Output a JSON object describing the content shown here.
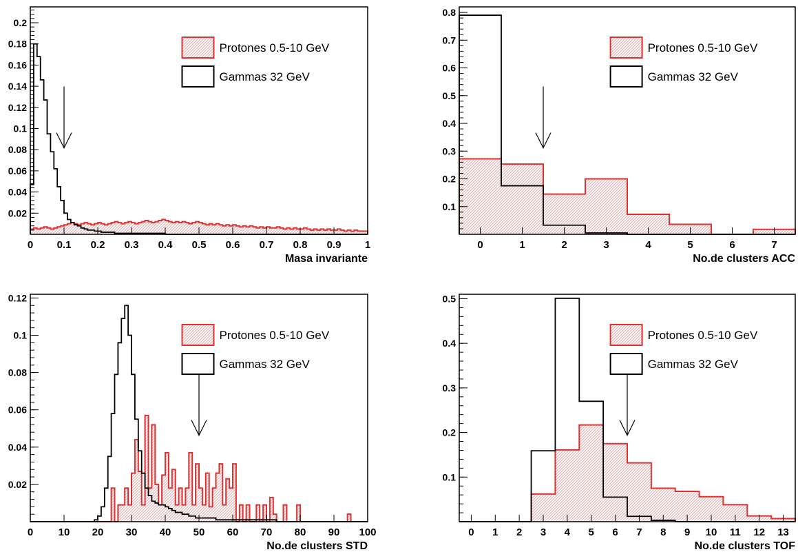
{
  "colors": {
    "protons": "#e03030",
    "gammas": "#000000",
    "hatch": "#e8a0a0",
    "axis": "#000000"
  },
  "chart_data": [
    {
      "id": "mass",
      "type": "histogram",
      "xlabel": "Masa invariante",
      "xlim": [
        0,
        1
      ],
      "ylim": [
        0,
        0.215
      ],
      "xticks": [
        "0",
        "0.1",
        "0.2",
        "0.3",
        "0.4",
        "0.5",
        "0.6",
        "0.7",
        "0.8",
        "0.9",
        "1"
      ],
      "xtick_values": [
        0,
        0.1,
        0.2,
        0.3,
        0.4,
        0.5,
        0.6,
        0.7,
        0.8,
        0.9,
        1
      ],
      "yticks": [
        "0.02",
        "0.04",
        "0.06",
        "0.08",
        "0.1",
        "0.12",
        "0.14",
        "0.16",
        "0.18",
        "0.2"
      ],
      "ytick_values": [
        0.02,
        0.04,
        0.06,
        0.08,
        0.1,
        0.12,
        0.14,
        0.16,
        0.18,
        0.2
      ],
      "legend": {
        "protons": "Protones 0.5-10 GeV",
        "gammas": "Gammas 32 GeV",
        "placement": "top-right"
      },
      "arrow_x": 0.1,
      "series": [
        {
          "name": "Protones 0.5-10 GeV",
          "bin_start": 0,
          "bin_width": 0.01,
          "values": [
            0.005,
            0.006,
            0.005,
            0.006,
            0.007,
            0.006,
            0.005,
            0.006,
            0.007,
            0.008,
            0.009,
            0.01,
            0.011,
            0.01,
            0.009,
            0.01,
            0.011,
            0.01,
            0.009,
            0.01,
            0.011,
            0.01,
            0.009,
            0.01,
            0.011,
            0.012,
            0.011,
            0.01,
            0.011,
            0.012,
            0.011,
            0.01,
            0.011,
            0.012,
            0.013,
            0.012,
            0.011,
            0.012,
            0.013,
            0.014,
            0.013,
            0.012,
            0.011,
            0.012,
            0.011,
            0.012,
            0.011,
            0.01,
            0.011,
            0.012,
            0.011,
            0.01,
            0.009,
            0.01,
            0.009,
            0.01,
            0.009,
            0.008,
            0.009,
            0.008,
            0.009,
            0.008,
            0.007,
            0.008,
            0.007,
            0.008,
            0.007,
            0.006,
            0.007,
            0.006,
            0.007,
            0.006,
            0.006,
            0.007,
            0.006,
            0.005,
            0.006,
            0.005,
            0.006,
            0.005,
            0.005,
            0.006,
            0.005,
            0.004,
            0.005,
            0.004,
            0.005,
            0.004,
            0.005,
            0.004,
            0.004,
            0.005,
            0.004,
            0.003,
            0.004,
            0.003,
            0.004,
            0.003,
            0.003,
            0.003
          ]
        },
        {
          "name": "Gammas 32 GeV",
          "bin_start": 0,
          "bin_width": 0.01,
          "values": [
            0.047,
            0.18,
            0.168,
            0.146,
            0.127,
            0.095,
            0.078,
            0.062,
            0.045,
            0.032,
            0.02,
            0.014,
            0.011,
            0.009,
            0.008,
            0.006,
            0.005,
            0.004,
            0.004,
            0.003,
            0.003,
            0.002,
            0.002,
            0.002,
            0.002,
            0.001,
            0.001,
            0.001,
            0.001,
            0.001,
            0.001,
            0.001,
            0.001,
            0.001,
            0.001,
            0.001,
            0.001,
            0.001,
            0.001,
            0.001,
            0,
            0,
            0,
            0,
            0,
            0,
            0,
            0,
            0,
            0,
            0,
            0,
            0,
            0,
            0,
            0,
            0,
            0,
            0,
            0,
            0,
            0,
            0,
            0,
            0,
            0,
            0,
            0,
            0,
            0,
            0,
            0,
            0,
            0,
            0,
            0,
            0,
            0,
            0,
            0,
            0,
            0,
            0,
            0,
            0,
            0,
            0,
            0,
            0,
            0,
            0,
            0,
            0,
            0,
            0,
            0,
            0,
            0,
            0,
            0
          ]
        }
      ]
    },
    {
      "id": "acc",
      "type": "histogram",
      "xlabel": "No.de clusters ACC",
      "xlim": [
        -0.5,
        7.5
      ],
      "ylim": [
        0,
        0.82
      ],
      "xticks": [
        "0",
        "1",
        "2",
        "3",
        "4",
        "5",
        "6",
        "7"
      ],
      "xtick_values": [
        0,
        1,
        2,
        3,
        4,
        5,
        6,
        7
      ],
      "yticks": [
        "0.1",
        "0.2",
        "0.3",
        "0.4",
        "0.5",
        "0.6",
        "0.7",
        "0.8"
      ],
      "ytick_values": [
        0.1,
        0.2,
        0.3,
        0.4,
        0.5,
        0.6,
        0.7,
        0.8
      ],
      "legend": {
        "protons": "Protones 0.5-10 GeV",
        "gammas": "Gammas 32 GeV",
        "placement": "top-right"
      },
      "arrow_x": 1.5,
      "series": [
        {
          "name": "Protones 0.5-10 GeV",
          "bin_start": -0.5,
          "bin_width": 1,
          "values": [
            0.272,
            0.253,
            0.145,
            0.2,
            0.072,
            0.036,
            0.0,
            0.018
          ]
        },
        {
          "name": "Gammas 32 GeV",
          "bin_start": -0.5,
          "bin_width": 1,
          "values": [
            0.79,
            0.175,
            0.033,
            0.005,
            0.0,
            0.0,
            0.0,
            0.0
          ]
        }
      ]
    },
    {
      "id": "std",
      "type": "histogram",
      "xlabel": "No.de clusters STD",
      "xlim": [
        0,
        100
      ],
      "ylim": [
        0,
        0.122
      ],
      "xticks": [
        "0",
        "10",
        "20",
        "30",
        "40",
        "50",
        "60",
        "70",
        "80",
        "90",
        "100"
      ],
      "xtick_values": [
        0,
        10,
        20,
        30,
        40,
        50,
        60,
        70,
        80,
        90,
        100
      ],
      "yticks": [
        "0.02",
        "0.04",
        "0.06",
        "0.08",
        "0.1",
        "0.12"
      ],
      "ytick_values": [
        0.02,
        0.04,
        0.06,
        0.08,
        0.1,
        0.12
      ],
      "legend": {
        "protons": "Protones 0.5-10 GeV",
        "gammas": "Gammas 32 GeV",
        "placement": "top-right"
      },
      "arrow_x": 50,
      "series": [
        {
          "name": "Protones 0.5-10 GeV",
          "bin_start": 0,
          "bin_width": 1,
          "values": [
            0,
            0,
            0,
            0,
            0,
            0,
            0,
            0,
            0,
            0,
            0,
            0,
            0,
            0,
            0,
            0,
            0,
            0,
            0,
            0,
            0,
            0,
            0,
            0,
            0.018,
            0,
            0.009,
            0.009,
            0.018,
            0.009,
            0.026,
            0.044,
            0.027,
            0.009,
            0.057,
            0.018,
            0.052,
            0.02,
            0.009,
            0.025,
            0.037,
            0.018,
            0.028,
            0.009,
            0.018,
            0.009,
            0.018,
            0.037,
            0.009,
            0.031,
            0.018,
            0.009,
            0.026,
            0.008,
            0.018,
            0.026,
            0.031,
            0.009,
            0.023,
            0.018,
            0.031,
            0,
            0.009,
            0,
            0.009,
            0,
            0,
            0.009,
            0,
            0.009,
            0,
            0.013,
            0.004,
            0,
            0,
            0.009,
            0,
            0,
            0,
            0.009,
            0,
            0,
            0,
            0,
            0,
            0,
            0,
            0,
            0,
            0,
            0,
            0,
            0,
            0,
            0.004,
            0,
            0,
            0,
            0,
            0
          ]
        },
        {
          "name": "Gammas 32 GeV",
          "bin_start": 0,
          "bin_width": 1,
          "values": [
            0,
            0,
            0,
            0,
            0,
            0,
            0,
            0,
            0,
            0,
            0,
            0,
            0,
            0,
            0,
            0,
            0,
            0,
            0,
            0.001,
            0.003,
            0.008,
            0.018,
            0.035,
            0.058,
            0.079,
            0.096,
            0.109,
            0.116,
            0.1,
            0.079,
            0.055,
            0.038,
            0.026,
            0.018,
            0.014,
            0.011,
            0.01,
            0.009,
            0.009,
            0.008,
            0.007,
            0.006,
            0.005,
            0.005,
            0.004,
            0.004,
            0.003,
            0.003,
            0.002,
            0.002,
            0.002,
            0.002,
            0.002,
            0.002,
            0.001,
            0.001,
            0.001,
            0.001,
            0.001,
            0.001,
            0.001,
            0.001,
            0.001,
            0.001,
            0.001,
            0.001,
            0.001,
            0.001,
            0.001,
            0.001,
            0.001,
            0.001,
            0,
            0,
            0,
            0,
            0,
            0,
            0,
            0,
            0,
            0,
            0,
            0,
            0,
            0,
            0,
            0,
            0,
            0,
            0,
            0,
            0,
            0,
            0,
            0,
            0,
            0,
            0
          ]
        }
      ]
    },
    {
      "id": "tof",
      "type": "histogram",
      "xlabel": "No.de clusters TOF",
      "xlim": [
        -0.5,
        13.5
      ],
      "ylim": [
        0,
        0.51
      ],
      "xticks": [
        "0",
        "1",
        "2",
        "3",
        "4",
        "5",
        "6",
        "7",
        "8",
        "9",
        "10",
        "11",
        "12",
        "13"
      ],
      "xtick_values": [
        0,
        1,
        2,
        3,
        4,
        5,
        6,
        7,
        8,
        9,
        10,
        11,
        12,
        13
      ],
      "yticks": [
        "0.1",
        "0.2",
        "0.3",
        "0.4",
        "0.5"
      ],
      "ytick_values": [
        0.1,
        0.2,
        0.3,
        0.4,
        0.5
      ],
      "legend": {
        "protons": "Protones 0.5-10 GeV",
        "gammas": "Gammas 32 GeV",
        "placement": "top-right"
      },
      "arrow_x": 6.5,
      "series": [
        {
          "name": "Protones 0.5-10 GeV",
          "bin_start": -0.5,
          "bin_width": 1,
          "values": [
            0,
            0,
            0,
            0.062,
            0.161,
            0.217,
            0.175,
            0.132,
            0.075,
            0.068,
            0.056,
            0.038,
            0.013,
            0.007
          ]
        },
        {
          "name": "Gammas 32 GeV",
          "bin_start": -0.5,
          "bin_width": 1,
          "values": [
            0,
            0,
            0,
            0.159,
            0.501,
            0.27,
            0.055,
            0.012,
            0.003,
            0,
            0,
            0,
            0,
            0
          ]
        }
      ]
    }
  ]
}
